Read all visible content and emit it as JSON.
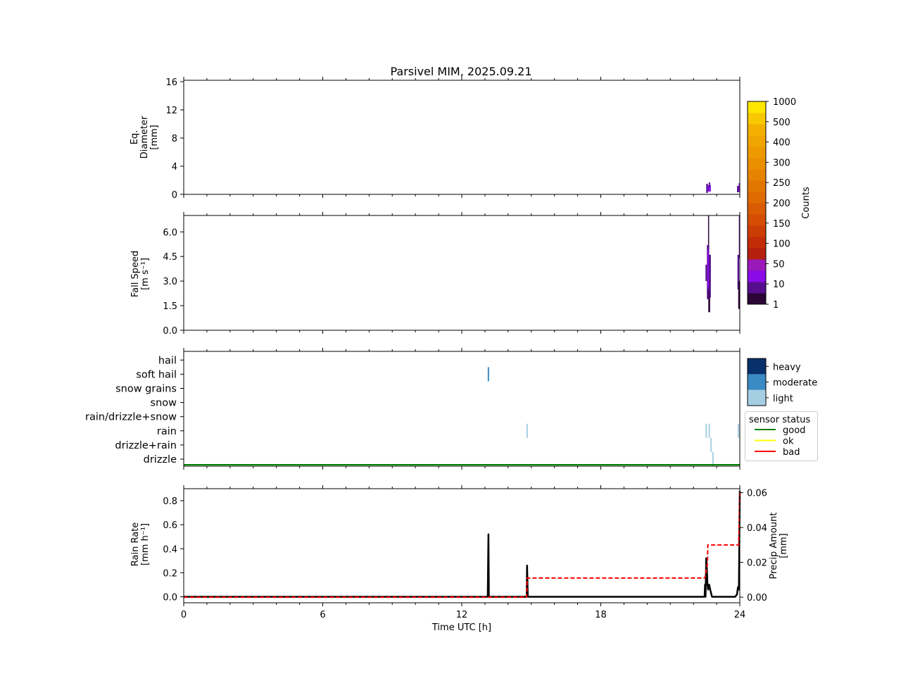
{
  "chart_data": {
    "title": "Parsivel MIM, 2025.09.21",
    "xlabel": "Time UTC [h]",
    "xlim": [
      0,
      24
    ],
    "xticks": [
      0,
      6,
      12,
      18,
      24
    ],
    "xtick_labels": [
      "0",
      "6",
      "12",
      "18",
      "24"
    ],
    "panels": [
      {
        "id": "diameter",
        "type": "heatmap",
        "ylabel_lines": [
          "Eq.",
          "Diameter",
          "[mm]"
        ],
        "ylim": [
          0,
          16
        ],
        "yticks": [
          0,
          4,
          8,
          12,
          16
        ],
        "ytick_labels": [
          "0",
          "4",
          "8",
          "12",
          "16"
        ],
        "patches": [
          {
            "t0": 22.55,
            "t1": 22.62,
            "y0": 0.2,
            "y1": 1.5,
            "level": 1
          },
          {
            "t0": 22.62,
            "t1": 22.75,
            "y0": 0.4,
            "y1": 1.3,
            "level": 2
          },
          {
            "t0": 22.66,
            "t1": 22.72,
            "y0": 1.0,
            "y1": 1.7,
            "level": 1
          },
          {
            "t0": 23.88,
            "t1": 23.97,
            "y0": 0.3,
            "y1": 1.2,
            "level": 1
          },
          {
            "t0": 23.95,
            "t1": 24.0,
            "y0": 0.4,
            "y1": 1.6,
            "level": 2
          }
        ]
      },
      {
        "id": "fallspeed",
        "type": "heatmap",
        "ylabel_lines": [
          "Fall Speed",
          "[m s⁻¹]"
        ],
        "ylim": [
          0,
          7.0
        ],
        "yticks": [
          0.0,
          1.5,
          3.0,
          4.5,
          6.0
        ],
        "ytick_labels": [
          "0.0",
          "1.5",
          "3.0",
          "4.5",
          "6.0"
        ],
        "patches": [
          {
            "t0": 22.52,
            "t1": 22.58,
            "y0": 3.0,
            "y1": 4.0,
            "level": 1
          },
          {
            "t0": 22.58,
            "t1": 22.68,
            "y0": 1.9,
            "y1": 5.2,
            "level": 1
          },
          {
            "t0": 22.6,
            "t1": 22.66,
            "y0": 2.6,
            "y1": 4.9,
            "level": 2
          },
          {
            "t0": 22.63,
            "t1": 22.66,
            "y0": 5.2,
            "y1": 7.0,
            "level": 0
          },
          {
            "t0": 22.64,
            "t1": 22.72,
            "y0": 1.1,
            "y1": 2.4,
            "level": 0
          },
          {
            "t0": 22.68,
            "t1": 22.75,
            "y0": 2.0,
            "y1": 4.6,
            "level": 1
          },
          {
            "t0": 23.9,
            "t1": 23.97,
            "y0": 2.5,
            "y1": 4.6,
            "level": 1
          },
          {
            "t0": 23.93,
            "t1": 24.0,
            "y0": 1.3,
            "y1": 3.0,
            "level": 0
          },
          {
            "t0": 23.96,
            "t1": 24.0,
            "y0": 4.4,
            "y1": 7.0,
            "level": 1
          }
        ]
      },
      {
        "id": "weather",
        "type": "category",
        "categories": [
          "drizzle",
          "drizzle+rain",
          "rain",
          "rain/drizzle+snow",
          "snow",
          "snow grains",
          "soft hail",
          "hail"
        ],
        "events": [
          {
            "t": 13.15,
            "category": "soft hail",
            "intensity": "moderate"
          },
          {
            "t": 14.82,
            "category": "rain",
            "intensity": "light"
          },
          {
            "t": 22.55,
            "category": "rain",
            "intensity": "light"
          },
          {
            "t": 22.68,
            "category": "rain",
            "intensity": "light"
          },
          {
            "t": 22.76,
            "category": "drizzle+rain",
            "intensity": "light"
          },
          {
            "t": 22.84,
            "category": "drizzle",
            "intensity": "light"
          },
          {
            "t": 23.94,
            "category": "rain",
            "intensity": "light"
          }
        ],
        "intensity_legend": [
          "light",
          "moderate",
          "heavy"
        ],
        "intensity_colors": {
          "light": "#a6cee3",
          "moderate": "#3a8ac4",
          "heavy": "#08306b"
        },
        "sensor_status": {
          "title": "sensor status",
          "entries": [
            {
              "label": "good",
              "color": "#008000"
            },
            {
              "label": "ok",
              "color": "#ffff00"
            },
            {
              "label": "bad",
              "color": "#ff0000"
            }
          ],
          "timeline": [
            {
              "t0": 0,
              "t1": 24,
              "status": "good"
            }
          ]
        }
      },
      {
        "id": "rain",
        "type": "line",
        "ylabel_lines": [
          "Rain Rate",
          "[mm h⁻¹]"
        ],
        "ylim": [
          -0.05,
          0.9
        ],
        "yticks": [
          0.0,
          0.2,
          0.4,
          0.6,
          0.8
        ],
        "ytick_labels": [
          "0.0",
          "0.2",
          "0.4",
          "0.6",
          "0.8"
        ],
        "y2label_lines": [
          "Precip Amount",
          "[mm]"
        ],
        "y2lim": [
          -0.0032,
          0.0623
        ],
        "y2ticks": [
          0.0,
          0.02,
          0.04,
          0.06
        ],
        "y2tick_labels": [
          "0.00",
          "0.02",
          "0.04",
          "0.06"
        ],
        "series": [
          {
            "name": "Rain Rate",
            "axis": "left",
            "color": "#000000",
            "style": "solid",
            "x": [
              0,
              13.1,
              13.12,
              13.15,
              13.17,
              13.2,
              14.77,
              14.8,
              14.82,
              14.85,
              14.87,
              22.48,
              22.5,
              22.52,
              22.55,
              22.58,
              22.6,
              22.63,
              22.68,
              22.72,
              22.8,
              22.9,
              23.8,
              23.88,
              23.92,
              23.96,
              24.0
            ],
            "y": [
              0,
              0,
              0,
              0.52,
              0,
              0,
              0,
              0,
              0.26,
              0,
              0,
              0,
              0.1,
              0,
              0.32,
              0.22,
              0.12,
              0.06,
              0.1,
              0.06,
              0,
              0,
              0,
              0.02,
              0.08,
              0.06,
              0.88
            ]
          },
          {
            "name": "Precip Amount",
            "axis": "right",
            "color": "#ff0000",
            "style": "dashed",
            "x": [
              0,
              14.8,
              14.82,
              22.5,
              22.6,
              22.62,
              23.95,
              24.0
            ],
            "y": [
              0,
              0,
              0.011,
              0.011,
              0.019,
              0.03,
              0.03,
              0.06
            ]
          }
        ]
      }
    ],
    "colorbar": {
      "label": "Counts",
      "tick_labels": [
        "1",
        "10",
        "50",
        "100",
        "150",
        "200",
        "250",
        "300",
        "400",
        "500",
        "1000"
      ],
      "colors": [
        "#2c0536",
        "#560e8e",
        "#8a0be8",
        "#9a19b8",
        "#b51f0e",
        "#c22c07",
        "#cc3d04",
        "#d44d03",
        "#d95c02",
        "#de6a00",
        "#e27700",
        "#e68300",
        "#ea8f00",
        "#ed9a00",
        "#f0a500",
        "#f3b000",
        "#f8c800",
        "#ffe600"
      ]
    }
  }
}
